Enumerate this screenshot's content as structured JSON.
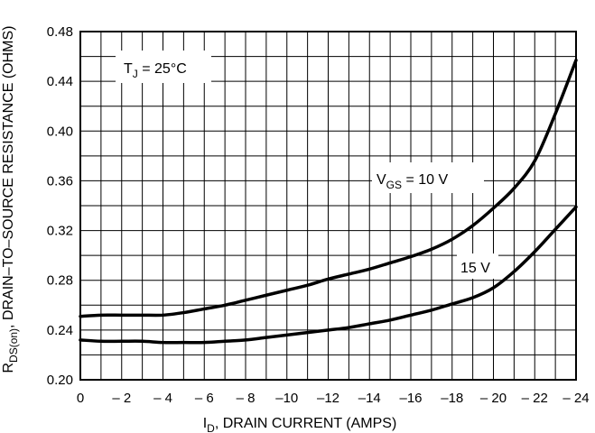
{
  "chart_data": {
    "type": "line",
    "ylabel": {
      "base": "R",
      "sub": "DS(on)",
      "rest": ", DRAIN–TO–SOURCE RESISTANCE (OHMS)"
    },
    "xlabel": {
      "base": "I",
      "sub": "D",
      "rest": ", DRAIN CURRENT (AMPS)"
    },
    "xlim": [
      0,
      -24
    ],
    "ylim": [
      0.2,
      0.48
    ],
    "xticks": [
      0,
      -2,
      -4,
      -6,
      -8,
      -10,
      -12,
      -14,
      -16,
      -18,
      -20,
      -22,
      -24
    ],
    "xtick_labels": [
      "0",
      "– 2",
      "– 4",
      "– 6",
      "– 8",
      "–10",
      "–12",
      "–14",
      "–16",
      "–18",
      "– 20",
      "– 22",
      "– 24"
    ],
    "yticks": [
      0.2,
      0.24,
      0.28,
      0.32,
      0.36,
      0.4,
      0.44,
      0.48
    ],
    "ytick_labels": [
      "0.20",
      "0.24",
      "0.28",
      "0.32",
      "0.36",
      "0.40",
      "0.44",
      "0.48"
    ],
    "x_minor_step": 1,
    "y_minor_step": 0.02,
    "grid": true,
    "annotation": {
      "base": "T",
      "sub": "J",
      "rest": " = 25°C"
    },
    "series": [
      {
        "name": "V_GS = 10 V",
        "label_parts": {
          "base": "V",
          "sub": "GS",
          "rest": " = 10 V"
        },
        "x": [
          0,
          -1,
          -2,
          -3,
          -4,
          -5,
          -6,
          -7,
          -8,
          -9,
          -10,
          -11,
          -12,
          -13,
          -14,
          -15,
          -16,
          -17,
          -18,
          -19,
          -20,
          -21,
          -22,
          -23,
          -24
        ],
        "y": [
          0.251,
          0.252,
          0.252,
          0.252,
          0.252,
          0.254,
          0.257,
          0.26,
          0.264,
          0.268,
          0.272,
          0.276,
          0.281,
          0.285,
          0.289,
          0.294,
          0.299,
          0.305,
          0.313,
          0.324,
          0.338,
          0.354,
          0.376,
          0.414,
          0.457
        ]
      },
      {
        "name": "15 V",
        "label_parts": {
          "base": "15 V",
          "sub": "",
          "rest": ""
        },
        "x": [
          0,
          -1,
          -2,
          -3,
          -4,
          -5,
          -6,
          -7,
          -8,
          -9,
          -10,
          -11,
          -12,
          -13,
          -14,
          -15,
          -16,
          -17,
          -18,
          -19,
          -20,
          -21,
          -22,
          -23,
          -24
        ],
        "y": [
          0.232,
          0.231,
          0.231,
          0.231,
          0.23,
          0.23,
          0.23,
          0.231,
          0.232,
          0.234,
          0.236,
          0.238,
          0.24,
          0.242,
          0.245,
          0.248,
          0.252,
          0.256,
          0.261,
          0.266,
          0.274,
          0.287,
          0.303,
          0.321,
          0.339
        ]
      }
    ]
  }
}
